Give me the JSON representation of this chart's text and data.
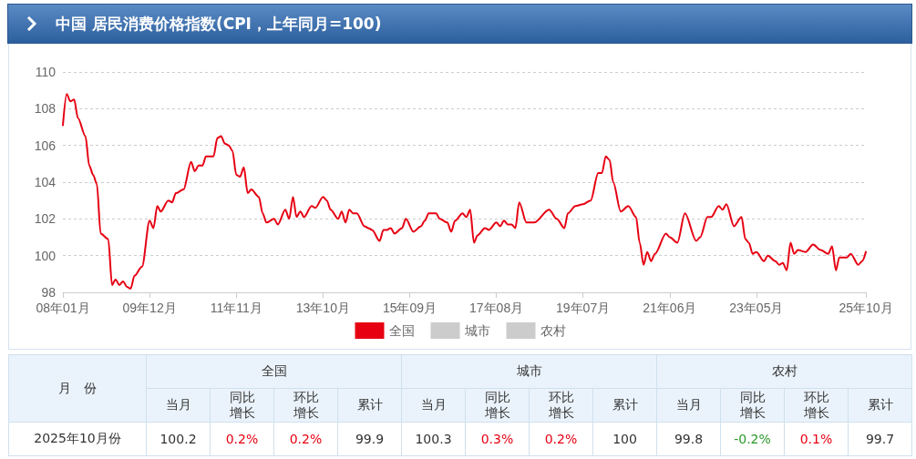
{
  "chart_data": [
    {
      "type": "line",
      "title": "中国 居民消费价格指数(CPI，上年同月=100)",
      "series": [
        {
          "name": "全国",
          "color": "#e60012",
          "x": [
            "2008-01",
            "2008-02",
            "2008-03",
            "2008-04",
            "2008-05",
            "2008-07",
            "2008-08",
            "2008-09",
            "2008-10",
            "2008-11",
            "2009-01",
            "2009-02",
            "2009-03",
            "2009-04",
            "2009-05",
            "2009-06",
            "2009-07",
            "2009-08",
            "2009-10",
            "2009-12",
            "2010-01",
            "2010-02",
            "2010-03",
            "2010-05",
            "2010-06",
            "2010-07",
            "2010-09",
            "2010-11",
            "2010-12",
            "2011-01",
            "2011-02",
            "2011-03",
            "2011-05",
            "2011-06",
            "2011-07",
            "2011-08",
            "2011-09",
            "2011-10",
            "2011-11",
            "2011-12",
            "2012-01",
            "2012-02",
            "2012-03",
            "2012-05",
            "2012-06",
            "2012-07",
            "2012-09",
            "2012-10",
            "2012-12",
            "2013-01",
            "2013-02",
            "2013-03",
            "2013-04",
            "2013-05",
            "2013-07",
            "2013-08",
            "2013-10",
            "2013-11",
            "2013-12",
            "2014-02",
            "2014-03",
            "2014-04",
            "2014-05",
            "2014-06",
            "2014-07",
            "2014-09",
            "2014-10",
            "2014-11",
            "2015-01",
            "2015-02",
            "2015-03",
            "2015-04",
            "2015-05",
            "2015-07",
            "2015-08",
            "2015-10",
            "2015-12",
            "2016-01",
            "2016-02",
            "2016-04",
            "2016-05",
            "2016-07",
            "2016-08",
            "2016-09",
            "2016-11",
            "2016-12",
            "2017-01",
            "2017-02",
            "2017-03",
            "2017-05",
            "2017-06",
            "2017-08",
            "2017-09",
            "2017-10",
            "2017-11",
            "2017-12",
            "2018-01",
            "2018-02",
            "2018-04",
            "2018-06",
            "2018-10",
            "2018-12",
            "2019-02",
            "2019-03",
            "2019-05",
            "2019-07",
            "2019-09",
            "2019-11",
            "2019-12",
            "2020-01",
            "2020-02",
            "2020-03",
            "2020-05",
            "2020-07",
            "2020-09",
            "2020-10",
            "2020-11",
            "2020-12",
            "2021-01",
            "2021-02",
            "2021-05",
            "2021-06",
            "2021-08",
            "2021-10",
            "2022-01",
            "2022-02",
            "2022-04",
            "2022-05",
            "2022-07",
            "2022-08",
            "2022-09",
            "2022-11",
            "2023-01",
            "2023-02",
            "2023-03",
            "2023-04",
            "2023-05",
            "2023-07",
            "2023-08",
            "2023-10",
            "2023-11",
            "2023-12",
            "2024-01",
            "2024-02",
            "2024-03",
            "2024-04",
            "2024-06",
            "2024-08",
            "2024-10",
            "2024-12",
            "2025-01",
            "2025-02",
            "2025-03",
            "2025-05",
            "2025-06",
            "2025-08",
            "2025-09",
            "2025-10"
          ],
          "values": [
            107.1,
            108.8,
            108.4,
            108.5,
            107.5,
            106.5,
            104.9,
            104.4,
            103.9,
            101.2,
            100.9,
            98.4,
            98.7,
            98.4,
            98.6,
            98.3,
            98.2,
            98.9,
            99.4,
            101.9,
            101.5,
            102.7,
            102.4,
            103.0,
            102.9,
            103.4,
            103.6,
            105.1,
            104.6,
            104.9,
            104.9,
            105.4,
            105.4,
            106.4,
            106.5,
            106.1,
            106.0,
            105.7,
            104.4,
            104.3,
            104.8,
            103.4,
            103.6,
            103.2,
            102.3,
            101.8,
            102.0,
            101.7,
            102.5,
            102.0,
            103.2,
            102.1,
            102.4,
            102.1,
            102.7,
            102.6,
            103.2,
            103.0,
            102.5,
            102.0,
            102.4,
            101.8,
            102.5,
            102.3,
            102.3,
            101.6,
            101.5,
            101.4,
            100.8,
            101.4,
            101.4,
            101.5,
            101.2,
            101.5,
            102.0,
            101.3,
            101.6,
            101.9,
            102.3,
            102.3,
            102.0,
            101.8,
            101.3,
            101.9,
            102.3,
            102.1,
            102.5,
            100.7,
            101.1,
            101.5,
            101.4,
            101.8,
            101.6,
            101.9,
            101.7,
            101.7,
            101.5,
            102.9,
            101.8,
            101.8,
            102.5,
            102.0,
            101.5,
            102.3,
            102.7,
            102.8,
            103.0,
            104.5,
            104.5,
            105.4,
            105.2,
            104.0,
            102.4,
            102.7,
            102.1,
            100.7,
            99.5,
            100.2,
            99.7,
            100.1,
            101.2,
            101.0,
            100.7,
            102.3,
            100.8,
            101.0,
            102.1,
            102.1,
            102.7,
            102.5,
            102.8,
            101.6,
            102.1,
            100.9,
            100.7,
            100.1,
            100.2,
            99.7,
            100.0,
            99.7,
            99.5,
            99.6,
            99.2,
            100.7,
            100.1,
            100.3,
            100.2,
            100.6,
            100.3,
            100.1,
            100.5,
            99.2,
            99.9,
            99.9,
            100.1,
            99.5,
            99.7,
            100.2
          ]
        },
        {
          "name": "城市",
          "color": "#cccccc"
        },
        {
          "name": "农村",
          "color": "#cccccc"
        }
      ],
      "xlim": [
        "2008-01",
        "2025-10"
      ],
      "xticks": [
        {
          "value": "2008-01",
          "label": "08年01月"
        },
        {
          "value": "2009-12",
          "label": "09年12月"
        },
        {
          "value": "2011-11",
          "label": "11年11月"
        },
        {
          "value": "2013-10",
          "label": "13年10月"
        },
        {
          "value": "2015-09",
          "label": "15年09月"
        },
        {
          "value": "2017-08",
          "label": "17年08月"
        },
        {
          "value": "2019-07",
          "label": "19年07月"
        },
        {
          "value": "2021-06",
          "label": "21年06月"
        },
        {
          "value": "2023-05",
          "label": "23年05月"
        },
        {
          "value": "2025-10",
          "label": "25年10月"
        }
      ],
      "ylim": [
        98,
        110
      ],
      "yticks": [
        98,
        100,
        102,
        104,
        106,
        108,
        110
      ],
      "grid": "y",
      "legend": "bottom",
      "marker": "none",
      "line_style": "solid"
    },
    {
      "type": "other",
      "annotations": [
        "月　份",
        "全国",
        "城市",
        "农村",
        "当月",
        "同比增长",
        "环比增长",
        "累计",
        "当月",
        "同比增长",
        "环比增长",
        "累计",
        "当月",
        "同比增长",
        "环比增长",
        "累计",
        "2025年10月份",
        "100.2",
        "0.2%",
        "0.2%",
        "99.9",
        "100.3",
        "0.3%",
        "0.2%",
        "100",
        "99.8",
        "-0.2%",
        "0.1%",
        "99.7"
      ]
    }
  ]
}
